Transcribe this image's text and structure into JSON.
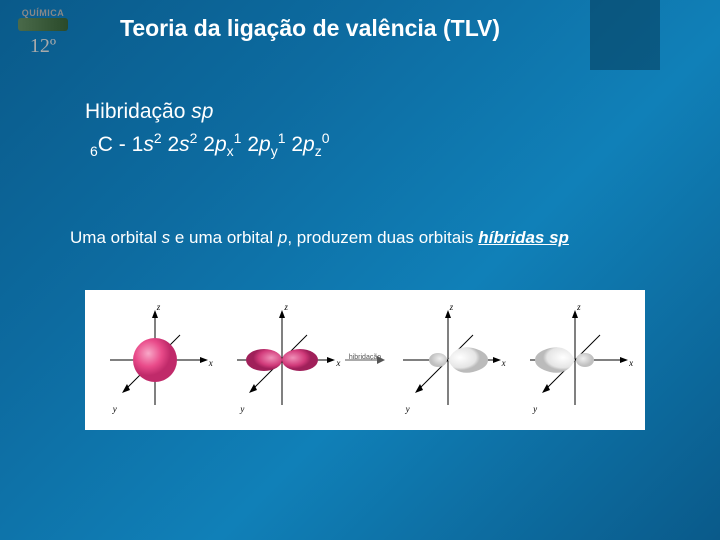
{
  "logo": {
    "quimica": "QUÍMICA",
    "grade": "12º"
  },
  "title": "Teoria da ligação de valência (TLV)",
  "subtitle": {
    "prefix": "Hibridação ",
    "type": "sp"
  },
  "econfig": {
    "atomic_sub": "6",
    "element": "C",
    "dash": " - ",
    "terms": [
      {
        "n": "1",
        "orb": "s",
        "sub": "",
        "sup": "2"
      },
      {
        "n": "2",
        "orb": "s",
        "sub": "",
        "sup": "2"
      },
      {
        "n": "2",
        "orb": "p",
        "sub": "x",
        "sup": "1"
      },
      {
        "n": "2",
        "orb": "p",
        "sub": "y",
        "sup": "1"
      },
      {
        "n": "2",
        "orb": "p",
        "sub": "z",
        "sup": "0"
      }
    ]
  },
  "statement": {
    "t1": "Uma orbital ",
    "i1": "s",
    "t2": " e uma orbital ",
    "i2": "p",
    "t3": ", produzem duas orbitais ",
    "b1": "híbridas sp"
  },
  "diagram": {
    "axes": {
      "z": "z",
      "x": "x",
      "y": "y"
    },
    "hibrid_label": "hibridação",
    "colors": {
      "s_orbital": "#e94b8a",
      "p_orbital": "#d13a7a",
      "sp_large": "#f5f5f5",
      "sp_small": "#e0e0e0",
      "axis": "#000"
    }
  }
}
